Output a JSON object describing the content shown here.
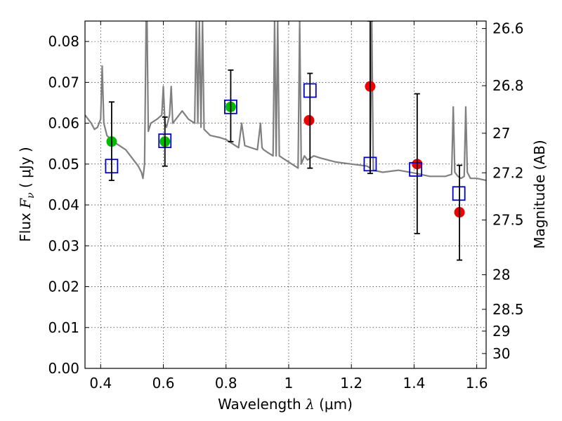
{
  "chart_data": {
    "type": "scatter",
    "title": "",
    "xlabel": {
      "prefix": "Wavelength  ",
      "symbol": "λ",
      "unit": " (μm)"
    },
    "ylabel": {
      "prefix": "Flux  ",
      "symbol": "F",
      "subscript": "ν",
      "unit": "  ( μJy )"
    },
    "y2label": "Magnitude (AB)",
    "xlim": [
      0.35,
      1.63
    ],
    "ylim": [
      0.0,
      0.085
    ],
    "grid": true,
    "x_ticks": [
      0.4,
      0.6,
      0.8,
      1.0,
      1.2,
      1.4,
      1.6
    ],
    "x_tick_labels": [
      "0.4",
      "0.6",
      "0.8",
      "1",
      "1.2",
      "1.4",
      "1.6"
    ],
    "y_ticks": [
      0.0,
      0.01,
      0.02,
      0.03,
      0.04,
      0.05,
      0.06,
      0.07,
      0.08
    ],
    "y_tick_labels": [
      "0.00",
      "0.01",
      "0.02",
      "0.03",
      "0.04",
      "0.05",
      "0.06",
      "0.07",
      "0.08"
    ],
    "y2_ticks": [
      26.6,
      26.8,
      27.0,
      27.2,
      27.5,
      28.0,
      28.5,
      29.0,
      30.0
    ],
    "y2_tick_labels": [
      "26.6",
      "26.8",
      "27",
      "27.2",
      "27.5",
      "28",
      "28.5",
      "29",
      "30"
    ],
    "colors": {
      "model": "#808080",
      "green": "#00bb00",
      "red": "#ee0000",
      "box": "#0000cc",
      "errorbar": "#000000"
    },
    "series": [
      {
        "kind": "line",
        "color": "gray",
        "x": [
          0.35,
          0.37,
          0.38,
          0.39,
          0.4,
          0.405,
          0.41,
          0.415,
          0.42,
          0.44,
          0.46,
          0.48,
          0.5,
          0.52,
          0.53,
          0.535,
          0.54,
          0.545,
          0.548,
          0.552,
          0.556,
          0.56,
          0.58,
          0.595,
          0.6,
          0.605,
          0.61,
          0.62,
          0.625,
          0.63,
          0.64,
          0.66,
          0.68,
          0.7,
          0.705,
          0.71,
          0.715,
          0.72,
          0.725,
          0.73,
          0.75,
          0.78,
          0.8,
          0.82,
          0.84,
          0.85,
          0.86,
          0.88,
          0.9,
          0.91,
          0.915,
          0.92,
          0.93,
          0.95,
          0.955,
          0.96,
          0.965,
          0.97,
          0.98,
          1.0,
          1.02,
          1.03,
          1.035,
          1.04,
          1.05,
          1.06,
          1.08,
          1.1,
          1.15,
          1.2,
          1.25,
          1.26,
          1.265,
          1.27,
          1.3,
          1.35,
          1.4,
          1.45,
          1.5,
          1.52,
          1.525,
          1.53,
          1.54,
          1.55,
          1.56,
          1.565,
          1.57,
          1.58,
          1.6,
          1.63
        ],
        "y": [
          0.062,
          0.06,
          0.0585,
          0.059,
          0.061,
          0.074,
          0.06,
          0.0585,
          0.057,
          0.0555,
          0.0545,
          0.0535,
          0.0515,
          0.0495,
          0.048,
          0.0465,
          0.05,
          0.085,
          0.085,
          0.058,
          0.059,
          0.06,
          0.061,
          0.062,
          0.069,
          0.06,
          0.059,
          0.062,
          0.069,
          0.06,
          0.061,
          0.063,
          0.061,
          0.06,
          0.085,
          0.06,
          0.085,
          0.059,
          0.085,
          0.0585,
          0.057,
          0.0565,
          0.056,
          0.055,
          0.054,
          0.06,
          0.0545,
          0.054,
          0.0535,
          0.06,
          0.054,
          0.0535,
          0.053,
          0.052,
          0.085,
          0.052,
          0.085,
          0.052,
          0.0515,
          0.0505,
          0.0495,
          0.049,
          0.085,
          0.05,
          0.052,
          0.051,
          0.052,
          0.0515,
          0.0505,
          0.05,
          0.0495,
          0.049,
          0.085,
          0.0485,
          0.048,
          0.0485,
          0.0478,
          0.047,
          0.047,
          0.0475,
          0.064,
          0.048,
          0.047,
          0.0465,
          0.047,
          0.064,
          0.048,
          0.0465,
          0.0465,
          0.046
        ]
      },
      {
        "kind": "points",
        "marker": "circle",
        "color": "green",
        "x": [
          0.435,
          0.605,
          0.815
        ],
        "y": [
          0.0555,
          0.0555,
          0.064
        ]
      },
      {
        "kind": "points",
        "marker": "circle",
        "color": "red",
        "x": [
          1.065,
          1.26,
          1.41,
          1.545
        ],
        "y": [
          0.0607,
          0.069,
          0.05,
          0.0382
        ]
      },
      {
        "kind": "points",
        "marker": "open-square",
        "color": "blue",
        "x": [
          0.435,
          0.605,
          0.815,
          1.068,
          1.26,
          1.405,
          1.543
        ],
        "y": [
          0.0495,
          0.0557,
          0.064,
          0.068,
          0.05,
          0.0487,
          0.0428
        ]
      },
      {
        "kind": "errorbars",
        "color": "black",
        "x": [
          0.435,
          0.605,
          0.815,
          1.068,
          1.26,
          1.41,
          1.545
        ],
        "y_low": [
          0.046,
          0.0495,
          0.0555,
          0.049,
          0.0477,
          0.033,
          0.0265
        ],
        "y_high": [
          0.0652,
          0.0615,
          0.073,
          0.0722,
          0.085,
          0.0672,
          0.0497
        ]
      }
    ]
  }
}
